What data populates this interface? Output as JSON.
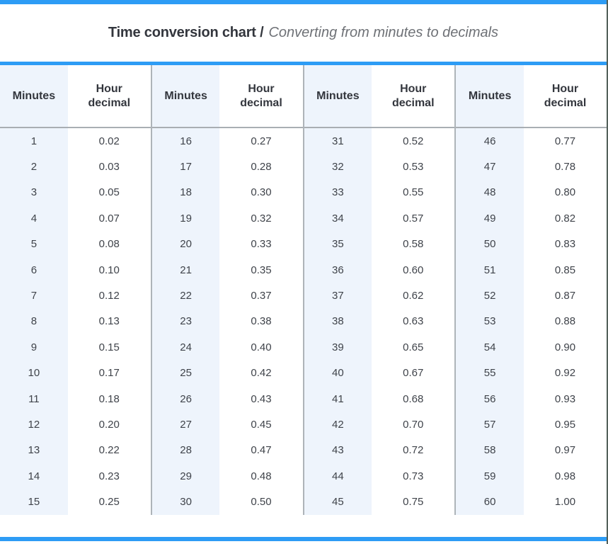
{
  "colors": {
    "accent": "#2d9cf5",
    "minutes_column_bg": "#eef4fc",
    "divider_gray": "#aeb4b9",
    "header_text": "#33363d",
    "cell_text": "#3f434a",
    "window_edge": "#53605a"
  },
  "title": {
    "bold": "Time conversion chart /",
    "italic": "Converting from minutes to decimals"
  },
  "table": {
    "headers": {
      "minutes": "Minutes",
      "hour_decimal": "Hour decimal"
    },
    "group_count": 4,
    "rows_per_group": 15
  },
  "chart_data": {
    "type": "table",
    "title": "Time conversion chart / Converting from minutes to decimals",
    "columns": [
      "Minutes",
      "Hour decimal",
      "Minutes",
      "Hour decimal",
      "Minutes",
      "Hour decimal",
      "Minutes",
      "Hour decimal"
    ],
    "layout": "60 minute-to-decimal pairs arranged in 4 side-by-side groups of 15 rows",
    "pairs": [
      [
        1,
        "0.02"
      ],
      [
        2,
        "0.03"
      ],
      [
        3,
        "0.05"
      ],
      [
        4,
        "0.07"
      ],
      [
        5,
        "0.08"
      ],
      [
        6,
        "0.10"
      ],
      [
        7,
        "0.12"
      ],
      [
        8,
        "0.13"
      ],
      [
        9,
        "0.15"
      ],
      [
        10,
        "0.17"
      ],
      [
        11,
        "0.18"
      ],
      [
        12,
        "0.20"
      ],
      [
        13,
        "0.22"
      ],
      [
        14,
        "0.23"
      ],
      [
        15,
        "0.25"
      ],
      [
        16,
        "0.27"
      ],
      [
        17,
        "0.28"
      ],
      [
        18,
        "0.30"
      ],
      [
        19,
        "0.32"
      ],
      [
        20,
        "0.33"
      ],
      [
        21,
        "0.35"
      ],
      [
        22,
        "0.37"
      ],
      [
        23,
        "0.38"
      ],
      [
        24,
        "0.40"
      ],
      [
        25,
        "0.42"
      ],
      [
        26,
        "0.43"
      ],
      [
        27,
        "0.45"
      ],
      [
        28,
        "0.47"
      ],
      [
        29,
        "0.48"
      ],
      [
        30,
        "0.50"
      ],
      [
        31,
        "0.52"
      ],
      [
        32,
        "0.53"
      ],
      [
        33,
        "0.55"
      ],
      [
        34,
        "0.57"
      ],
      [
        35,
        "0.58"
      ],
      [
        36,
        "0.60"
      ],
      [
        37,
        "0.62"
      ],
      [
        38,
        "0.63"
      ],
      [
        39,
        "0.65"
      ],
      [
        40,
        "0.67"
      ],
      [
        41,
        "0.68"
      ],
      [
        42,
        "0.70"
      ],
      [
        43,
        "0.72"
      ],
      [
        44,
        "0.73"
      ],
      [
        45,
        "0.75"
      ],
      [
        46,
        "0.77"
      ],
      [
        47,
        "0.78"
      ],
      [
        48,
        "0.80"
      ],
      [
        49,
        "0.82"
      ],
      [
        50,
        "0.83"
      ],
      [
        51,
        "0.85"
      ],
      [
        52,
        "0.87"
      ],
      [
        53,
        "0.88"
      ],
      [
        54,
        "0.90"
      ],
      [
        55,
        "0.92"
      ],
      [
        56,
        "0.93"
      ],
      [
        57,
        "0.95"
      ],
      [
        58,
        "0.97"
      ],
      [
        59,
        "0.98"
      ],
      [
        60,
        "1.00"
      ]
    ]
  }
}
